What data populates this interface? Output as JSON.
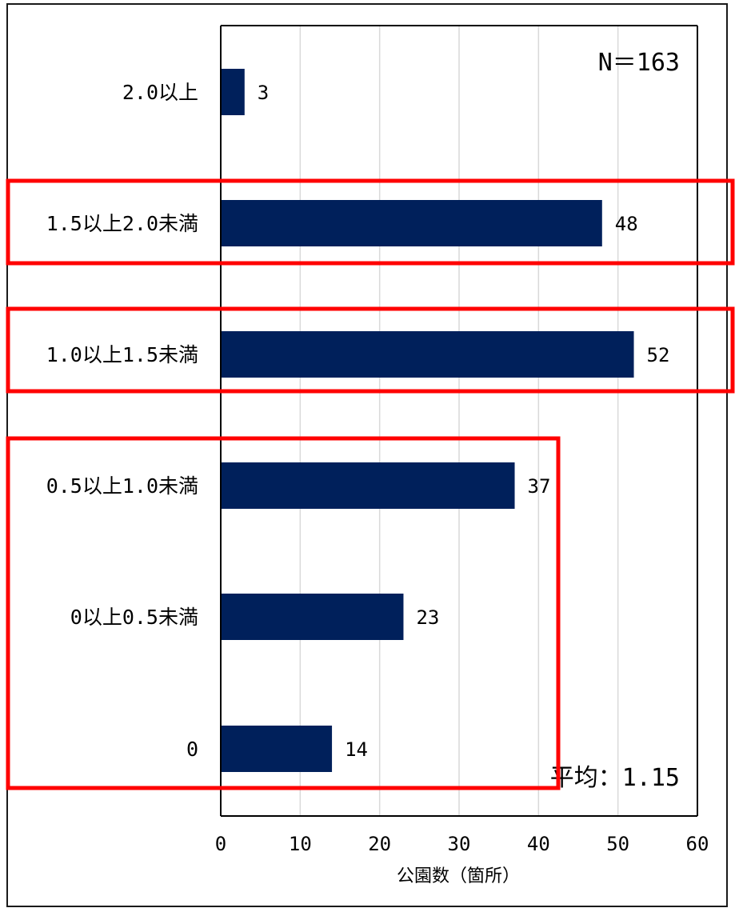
{
  "chart_data": {
    "type": "bar",
    "orientation": "horizontal",
    "categories": [
      "2.0以上",
      "1.5以上2.0未満",
      "1.0以上1.5未満",
      "0.5以上1.0未満",
      "0以上0.5未満",
      "0"
    ],
    "category_labels": [
      "2.0以上",
      "1.5以上2.0未満",
      "1.0以上1.5未満",
      "0.5以上1.0未満",
      "0以上0.5未満",
      "0"
    ],
    "values": [
      3,
      48,
      52,
      37,
      23,
      14
    ],
    "value_labels": [
      "3",
      "48",
      "52",
      "37",
      "23",
      "14"
    ],
    "xlabel": "公園数（箇所）",
    "ylabel": "",
    "xlim": [
      0,
      60
    ],
    "x_ticks": [
      "0",
      "10",
      "20",
      "30",
      "40",
      "50",
      "60"
    ],
    "grid": true,
    "bar_color": "#00205b",
    "annotations": {
      "n_text": "N＝163",
      "mean_text": "平均：1.15"
    },
    "highlight_color": "#ff0000",
    "highlight_groups": [
      [
        "1.5以上2.0未満"
      ],
      [
        "1.0以上1.5未満"
      ],
      [
        "0.5以上1.0未満",
        "0以上0.5未満",
        "0"
      ]
    ]
  }
}
